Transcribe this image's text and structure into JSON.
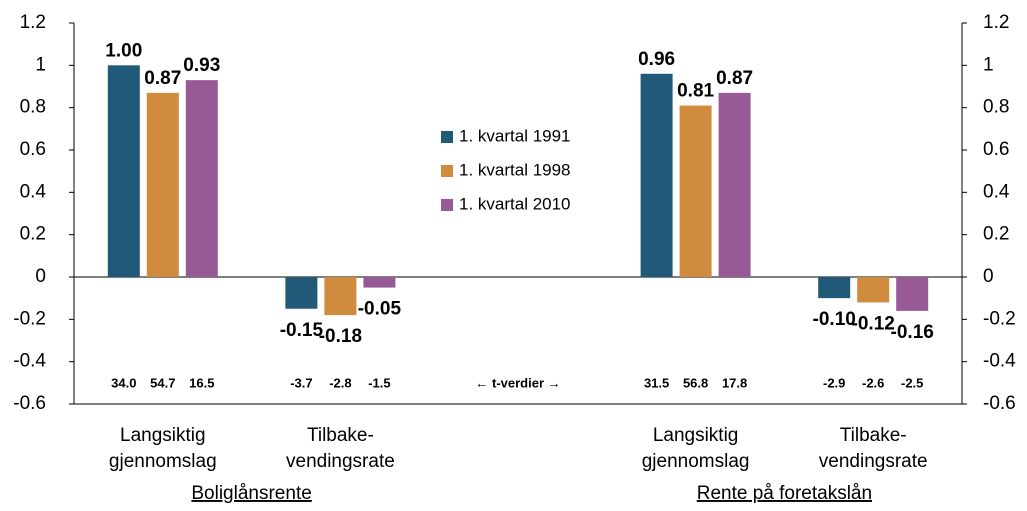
{
  "chart_data": {
    "type": "bar",
    "categories": [
      [
        "Langsiktig",
        "gjennomslag"
      ],
      [
        "Tilbake-",
        "vendingsrate"
      ],
      null,
      [
        "Langsiktig",
        "gjennomslag"
      ],
      [
        "Tilbake-",
        "vendingsrate"
      ]
    ],
    "group_labels": [
      "Boliglånsrente",
      "Rente på foretakslån"
    ],
    "annotation": "← t-verdier →",
    "series": [
      {
        "name": "1. kvartal 1991",
        "color": "#215a78",
        "values": [
          1.0,
          -0.15,
          null,
          0.96,
          -0.1
        ],
        "value_labels": [
          "1.00",
          "-0.15",
          null,
          "0.96",
          "-0.10"
        ],
        "t_values": [
          "34.0",
          "-3.7",
          null,
          "31.5",
          "-2.9"
        ]
      },
      {
        "name": "1. kvartal 1998",
        "color": "#d08b3e",
        "values": [
          0.87,
          -0.18,
          null,
          0.81,
          -0.12
        ],
        "value_labels": [
          "0.87",
          "-0.18",
          null,
          "0.81",
          "-0.12"
        ],
        "t_values": [
          "54.7",
          "-2.8",
          null,
          "56.8",
          "-2.6"
        ]
      },
      {
        "name": "1. kvartal 2010",
        "color": "#975a97",
        "values": [
          0.93,
          -0.05,
          null,
          0.87,
          -0.16
        ],
        "value_labels": [
          "0.93",
          "-0.05",
          null,
          "0.87",
          "-0.16"
        ],
        "t_values": [
          "16.5",
          "-1.5",
          null,
          "17.8",
          "-2.5"
        ]
      }
    ],
    "ylim": [
      -0.6,
      1.2
    ],
    "yticks": [
      -0.6,
      -0.4,
      -0.2,
      0,
      0.2,
      0.4,
      0.6,
      0.8,
      1,
      1.2
    ],
    "y2lim": [
      -0.6,
      1.2
    ],
    "y2ticks": [
      -0.6,
      -0.4,
      -0.2,
      0,
      0.2,
      0.4,
      0.6,
      0.8,
      1,
      1.2
    ],
    "grid": false
  }
}
